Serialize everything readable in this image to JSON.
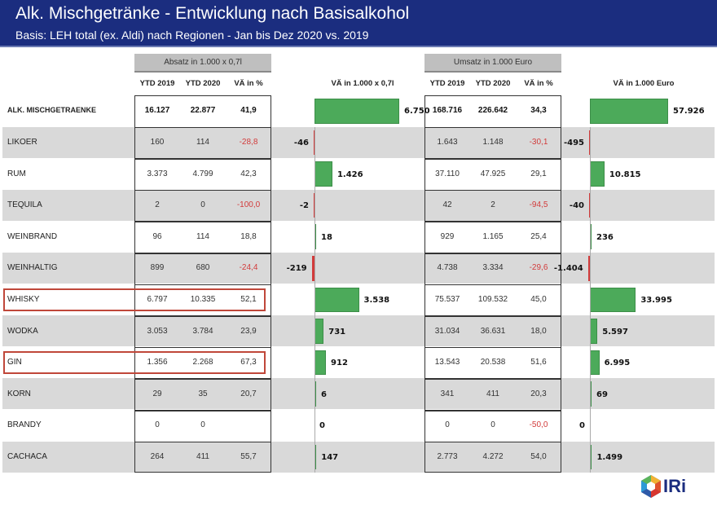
{
  "header": {
    "title": "Alk. Mischgetränke - Entwicklung nach Basisalkohol",
    "subtitle": "Basis: LEH total (ex. Aldi) nach Regionen - Jan bis Dez  2020 vs. 2019"
  },
  "groups": {
    "absatz": "Absatz in 1.000 x 0,7l",
    "umsatz": "Umsatz in 1.000 Euro"
  },
  "columns": {
    "ytd2019": "YTD 2019",
    "ytd2020": "YTD 2020",
    "va_pct": "VÄ in %",
    "va_absatz": "VÄ in 1.000 x 0,7l",
    "va_umsatz": "VÄ in 1.000 Euro"
  },
  "logo": {
    "text": "IRi"
  },
  "colors": {
    "header": "#1b2d7f",
    "positive": "#4caa5a",
    "negative": "#d23b3b",
    "highlight": "#c0473a"
  },
  "chart_data": {
    "type": "table",
    "title": "Alk. Mischgetränke - Entwicklung nach Basisalkohol",
    "subtitle": "Basis: LEH total (ex. Aldi) nach Regionen - Jan bis Dez  2020 vs. 2019",
    "highlighted": [
      "WHISKY",
      "GIN"
    ],
    "rows": [
      {
        "name": "ALK. MISCHGETRAENKE",
        "abs_2019": "16.127",
        "abs_2020": "22.877",
        "abs_pct": "41,9",
        "abs_diff": 6750,
        "abs_diff_label": "6.750",
        "ums_2019": "168.716",
        "ums_2020": "226.642",
        "ums_pct": "34,3",
        "ums_diff": 57926,
        "ums_diff_label": "57.926"
      },
      {
        "name": "LIKOER",
        "abs_2019": "160",
        "abs_2020": "114",
        "abs_pct": "-28,8",
        "abs_diff": -46,
        "abs_diff_label": "-46",
        "ums_2019": "1.643",
        "ums_2020": "1.148",
        "ums_pct": "-30,1",
        "ums_diff": -495,
        "ums_diff_label": "-495"
      },
      {
        "name": "RUM",
        "abs_2019": "3.373",
        "abs_2020": "4.799",
        "abs_pct": "42,3",
        "abs_diff": 1426,
        "abs_diff_label": "1.426",
        "ums_2019": "37.110",
        "ums_2020": "47.925",
        "ums_pct": "29,1",
        "ums_diff": 10815,
        "ums_diff_label": "10.815"
      },
      {
        "name": "TEQUILA",
        "abs_2019": "2",
        "abs_2020": "0",
        "abs_pct": "-100,0",
        "abs_diff": -2,
        "abs_diff_label": "-2",
        "ums_2019": "42",
        "ums_2020": "2",
        "ums_pct": "-94,5",
        "ums_diff": -40,
        "ums_diff_label": "-40"
      },
      {
        "name": "WEINBRAND",
        "abs_2019": "96",
        "abs_2020": "114",
        "abs_pct": "18,8",
        "abs_diff": 18,
        "abs_diff_label": "18",
        "ums_2019": "929",
        "ums_2020": "1.165",
        "ums_pct": "25,4",
        "ums_diff": 236,
        "ums_diff_label": "236"
      },
      {
        "name": "WEINHALTIG",
        "abs_2019": "899",
        "abs_2020": "680",
        "abs_pct": "-24,4",
        "abs_diff": -219,
        "abs_diff_label": "-219",
        "ums_2019": "4.738",
        "ums_2020": "3.334",
        "ums_pct": "-29,6",
        "ums_diff": -1404,
        "ums_diff_label": "-1.404"
      },
      {
        "name": "WHISKY",
        "abs_2019": "6.797",
        "abs_2020": "10.335",
        "abs_pct": "52,1",
        "abs_diff": 3538,
        "abs_diff_label": "3.538",
        "ums_2019": "75.537",
        "ums_2020": "109.532",
        "ums_pct": "45,0",
        "ums_diff": 33995,
        "ums_diff_label": "33.995"
      },
      {
        "name": "WODKA",
        "abs_2019": "3.053",
        "abs_2020": "3.784",
        "abs_pct": "23,9",
        "abs_diff": 731,
        "abs_diff_label": "731",
        "ums_2019": "31.034",
        "ums_2020": "36.631",
        "ums_pct": "18,0",
        "ums_diff": 5597,
        "ums_diff_label": "5.597"
      },
      {
        "name": "GIN",
        "abs_2019": "1.356",
        "abs_2020": "2.268",
        "abs_pct": "67,3",
        "abs_diff": 912,
        "abs_diff_label": "912",
        "ums_2019": "13.543",
        "ums_2020": "20.538",
        "ums_pct": "51,6",
        "ums_diff": 6995,
        "ums_diff_label": "6.995"
      },
      {
        "name": "KORN",
        "abs_2019": "29",
        "abs_2020": "35",
        "abs_pct": "20,7",
        "abs_diff": 6,
        "abs_diff_label": "6",
        "ums_2019": "341",
        "ums_2020": "411",
        "ums_pct": "20,3",
        "ums_diff": 69,
        "ums_diff_label": "69"
      },
      {
        "name": "BRANDY",
        "abs_2019": "0",
        "abs_2020": "0",
        "abs_pct": "",
        "abs_diff": 0,
        "abs_diff_label": "0",
        "ums_2019": "0",
        "ums_2020": "0",
        "ums_pct": "-50,0",
        "ums_diff": 0,
        "ums_diff_label": "0"
      },
      {
        "name": "CACHACA",
        "abs_2019": "264",
        "abs_2020": "411",
        "abs_pct": "55,7",
        "abs_diff": 147,
        "abs_diff_label": "147",
        "ums_2019": "2.773",
        "ums_2020": "4.272",
        "ums_pct": "54,0",
        "ums_diff": 1499,
        "ums_diff_label": "1.499"
      }
    ]
  }
}
